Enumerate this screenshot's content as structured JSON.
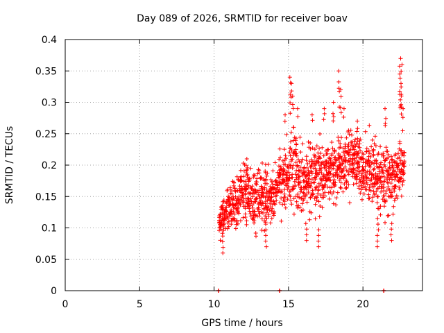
{
  "chart_data": {
    "type": "scatter",
    "title": "Day 089 of 2026, SRMTID for receiver boav",
    "xlabel": "GPS time / hours",
    "ylabel": "SRMTID / TECUs",
    "xlim": [
      0,
      24
    ],
    "ylim": [
      0,
      0.4
    ],
    "xticks": [
      0,
      5,
      10,
      15,
      20
    ],
    "xtick_labels": [
      "0",
      "5",
      "10",
      "15",
      "20"
    ],
    "yticks": [
      0,
      0.05,
      0.1,
      0.15,
      0.2,
      0.25,
      0.3,
      0.35,
      0.4
    ],
    "ytick_labels": [
      "0",
      "0.05",
      "0.1",
      "0.15",
      "0.2",
      "0.25",
      "0.3",
      "0.35",
      "0.4"
    ],
    "grid": true,
    "marker": "+",
    "marker_color": "#ff0000",
    "zero_markers": [
      10.3,
      14.4,
      21.4
    ],
    "trend_anchors": [
      {
        "x": 10.3,
        "lo": 0.08,
        "hi": 0.13
      },
      {
        "x": 11.0,
        "lo": 0.08,
        "hi": 0.18
      },
      {
        "x": 12.0,
        "lo": 0.09,
        "hi": 0.22
      },
      {
        "x": 13.0,
        "lo": 0.08,
        "hi": 0.22
      },
      {
        "x": 14.0,
        "lo": 0.1,
        "hi": 0.2
      },
      {
        "x": 14.6,
        "lo": 0.11,
        "hi": 0.26
      },
      {
        "x": 15.3,
        "lo": 0.1,
        "hi": 0.29
      },
      {
        "x": 16.0,
        "lo": 0.09,
        "hi": 0.25
      },
      {
        "x": 17.0,
        "lo": 0.11,
        "hi": 0.26
      },
      {
        "x": 18.0,
        "lo": 0.12,
        "hi": 0.26
      },
      {
        "x": 19.0,
        "lo": 0.14,
        "hi": 0.28
      },
      {
        "x": 20.0,
        "lo": 0.13,
        "hi": 0.27
      },
      {
        "x": 21.0,
        "lo": 0.1,
        "hi": 0.26
      },
      {
        "x": 22.0,
        "lo": 0.1,
        "hi": 0.25
      },
      {
        "x": 22.8,
        "lo": 0.15,
        "hi": 0.25
      }
    ],
    "peaks": [
      {
        "x": 10.6,
        "y": 0.06
      },
      {
        "x": 12.2,
        "y": 0.21
      },
      {
        "x": 13.5,
        "y": 0.07
      },
      {
        "x": 14.8,
        "y": 0.28
      },
      {
        "x": 15.1,
        "y": 0.34
      },
      {
        "x": 15.2,
        "y": 0.33
      },
      {
        "x": 15.3,
        "y": 0.31
      },
      {
        "x": 15.6,
        "y": 0.29
      },
      {
        "x": 16.2,
        "y": 0.08
      },
      {
        "x": 16.6,
        "y": 0.28
      },
      {
        "x": 17.0,
        "y": 0.07
      },
      {
        "x": 17.4,
        "y": 0.29
      },
      {
        "x": 18.0,
        "y": 0.3
      },
      {
        "x": 18.4,
        "y": 0.35
      },
      {
        "x": 18.5,
        "y": 0.32
      },
      {
        "x": 18.7,
        "y": 0.29
      },
      {
        "x": 19.6,
        "y": 0.27
      },
      {
        "x": 21.0,
        "y": 0.07
      },
      {
        "x": 21.5,
        "y": 0.29
      },
      {
        "x": 21.9,
        "y": 0.08
      },
      {
        "x": 22.5,
        "y": 0.37
      },
      {
        "x": 22.6,
        "y": 0.36
      },
      {
        "x": 22.55,
        "y": 0.33
      },
      {
        "x": 22.7,
        "y": 0.29
      }
    ],
    "approx_point_count": 1400
  }
}
